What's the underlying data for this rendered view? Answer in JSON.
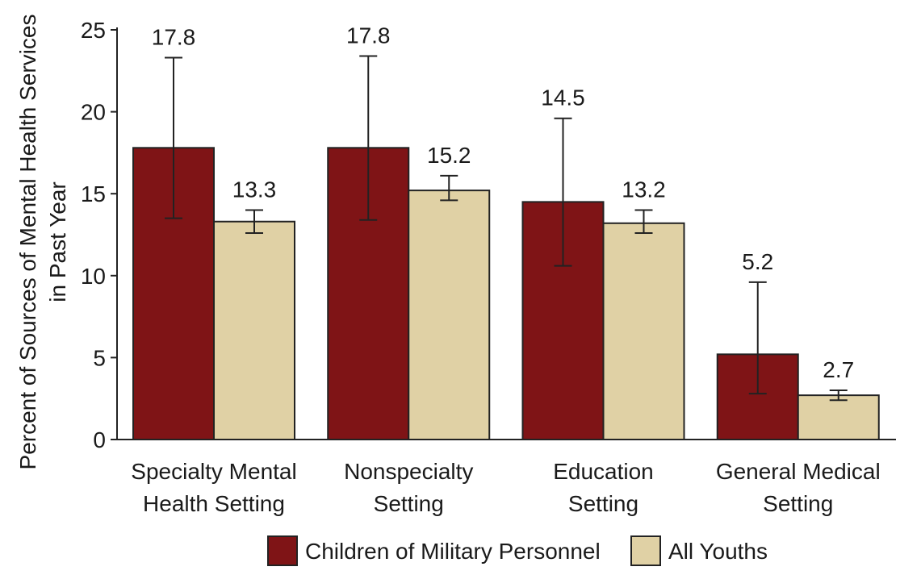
{
  "chart_data": {
    "type": "bar",
    "title": "",
    "xlabel": "",
    "ylabel_lines": [
      "Percent of Sources of Mental Health Services",
      "in Past Year"
    ],
    "ylim": [
      0,
      25
    ],
    "yticks": [
      0,
      5,
      10,
      15,
      20,
      25
    ],
    "categories": [
      [
        "Specialty Mental",
        "Health Setting"
      ],
      [
        "Nonspecialty",
        "Setting"
      ],
      [
        "Education",
        "Setting"
      ],
      [
        "General Medical",
        "Setting"
      ]
    ],
    "series": [
      {
        "name": "Children of Military Personnel",
        "color": "#7f1416",
        "values": [
          17.8,
          17.8,
          14.5,
          5.2
        ],
        "labels": [
          "17.8",
          "17.8",
          "14.5",
          "5.2"
        ],
        "error_low": [
          13.5,
          13.4,
          10.6,
          2.8
        ],
        "error_high": [
          23.3,
          23.4,
          19.6,
          9.6
        ]
      },
      {
        "name": "All Youths",
        "color": "#e0d1a5",
        "values": [
          13.3,
          15.2,
          13.2,
          2.7
        ],
        "labels": [
          "13.3",
          "15.2",
          "13.2",
          "2.7"
        ],
        "error_low": [
          12.6,
          14.6,
          12.6,
          2.4
        ],
        "error_high": [
          14.0,
          16.1,
          14.0,
          3.0
        ]
      }
    ],
    "legend_position": "bottom-center"
  }
}
